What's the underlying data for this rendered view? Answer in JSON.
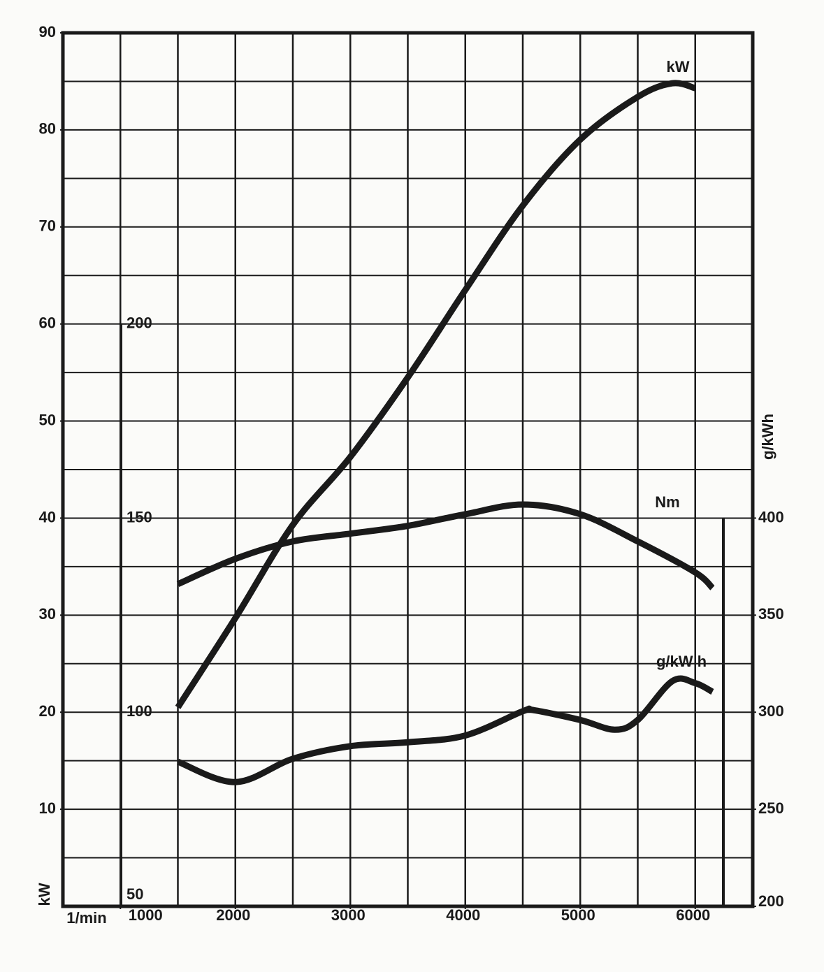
{
  "chart_data": {
    "type": "line",
    "x_label": "1/min",
    "y_label": "kW",
    "y3_label": "g/kWh",
    "xlim": [
      500,
      6500
    ],
    "xticks": [
      1000,
      2000,
      3000,
      4000,
      5000,
      6000
    ],
    "xgrid": [
      1000,
      1500,
      2000,
      2500,
      3000,
      3500,
      4000,
      4500,
      5000,
      5500,
      6000
    ],
    "ylim": [
      0,
      90
    ],
    "yticks": [
      10,
      20,
      30,
      40,
      50,
      60,
      70,
      80,
      90
    ],
    "ygrid": [
      5,
      10,
      15,
      20,
      25,
      30,
      35,
      40,
      45,
      50,
      55,
      60,
      65,
      70,
      75,
      80,
      85
    ],
    "y2lim": [
      50,
      275
    ],
    "y2ticks": [
      50,
      100,
      150,
      200
    ],
    "y3lim": [
      200,
      650
    ],
    "y3ticks": [
      200,
      250,
      300,
      350,
      400
    ],
    "grid": true,
    "series": [
      {
        "name": "kW",
        "color": "#1a1a1a",
        "axis": "y",
        "x": [
          1500,
          2000,
          2500,
          3000,
          3500,
          4000,
          4500,
          5000,
          5500,
          5800,
          6000
        ],
        "values": [
          20.5,
          29.7,
          39.3,
          46.3,
          54.5,
          63.5,
          72.2,
          79,
          83.4,
          84.8,
          84.3
        ]
      },
      {
        "name": "Nm",
        "color": "#1a1a1a",
        "axis": "y2",
        "x": [
          1500,
          2000,
          2500,
          3000,
          3500,
          4000,
          4500,
          5000,
          5500,
          6000,
          6150
        ],
        "values": [
          133,
          139.5,
          144,
          146,
          148,
          151,
          153.5,
          151,
          144,
          136,
          132
        ]
      },
      {
        "name": "g/kW h",
        "color": "#1a1a1a",
        "axis": "y3",
        "x": [
          1500,
          2000,
          2500,
          3000,
          3500,
          4000,
          4500,
          4600,
          5000,
          5300,
          5500,
          5800,
          6000,
          6150
        ],
        "values": [
          274.5,
          264,
          276,
          282.5,
          284.5,
          288,
          300.5,
          301,
          296,
          291,
          296,
          316,
          315,
          310.5
        ]
      }
    ]
  }
}
